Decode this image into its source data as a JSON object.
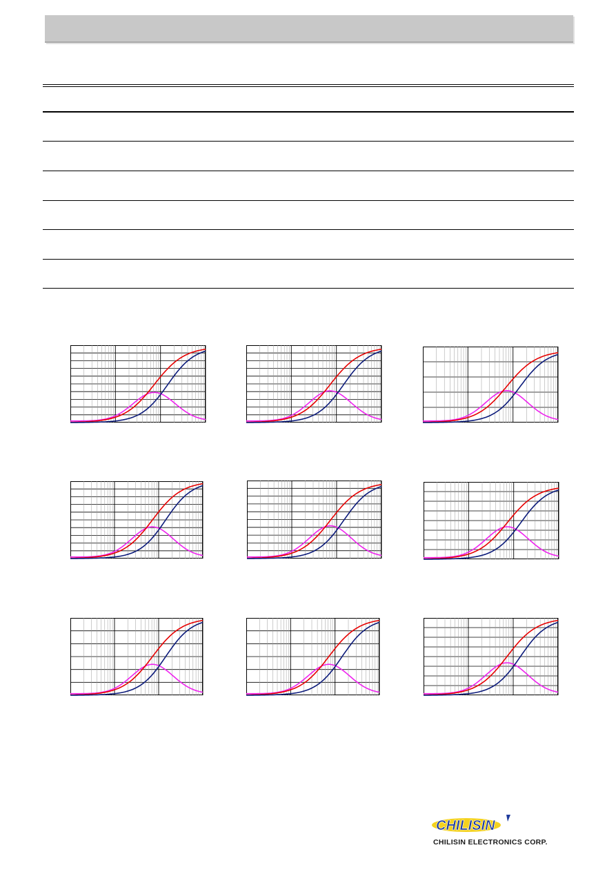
{
  "header": {
    "title": ""
  },
  "colors": {
    "header_bg": "#c8c8c8",
    "series_red": "#e60000",
    "series_navy": "#0b1a7a",
    "series_magenta": "#ee22ee",
    "grid": "#000000",
    "grid_minor": "#9a9a9a",
    "logo_blue": "#1f3b9c",
    "logo_yellow": "#f4d21f"
  },
  "table": {
    "rows": 6
  },
  "charts": [
    {
      "id": "c1",
      "xscale": "log",
      "gridlines": 10,
      "peak": 0.98,
      "imag_peak": 0.37,
      "imag_end": 0.12
    },
    {
      "id": "c2",
      "xscale": "log",
      "gridlines": 10,
      "peak": 0.98,
      "imag_peak": 0.39,
      "imag_end": 0.12
    },
    {
      "id": "c3",
      "xscale": "log",
      "gridlines": 5,
      "peak": 0.95,
      "imag_peak": 0.4,
      "imag_end": 0.02
    },
    {
      "id": "c4",
      "xscale": "log",
      "gridlines": 10,
      "peak": 1.0,
      "imag_peak": 0.39,
      "imag_end": 0.0
    },
    {
      "id": "c5",
      "xscale": "log",
      "gridlines": 10,
      "peak": 0.98,
      "imag_peak": 0.4,
      "imag_end": 0.0
    },
    {
      "id": "c6",
      "xscale": "log",
      "gridlines": 8,
      "peak": 0.95,
      "imag_peak": 0.4,
      "imag_end": 0.0
    },
    {
      "id": "c7",
      "xscale": "log",
      "gridlines": 6,
      "peak": 1.0,
      "imag_peak": 0.38,
      "imag_end": 0.0
    },
    {
      "id": "c8",
      "xscale": "log",
      "gridlines": 6,
      "peak": 1.0,
      "imag_peak": 0.38,
      "imag_end": 0.0
    },
    {
      "id": "c9",
      "xscale": "log",
      "gridlines": 8,
      "peak": 1.0,
      "imag_peak": 0.4,
      "imag_end": 0.0
    }
  ],
  "footer": {
    "logo_text": "CHILISIN",
    "company_name": "CHILISIN ELECTRONICS CORP."
  }
}
